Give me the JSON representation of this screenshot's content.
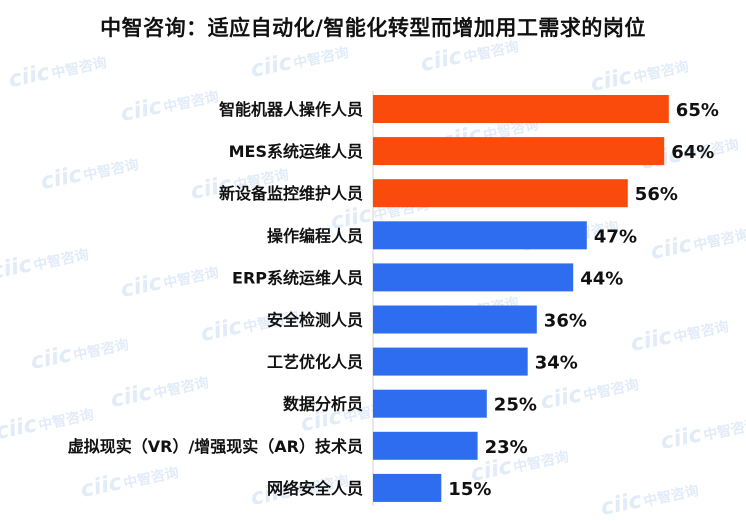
{
  "title": "中智咨询：适应自动化/智能化转型而增加用工需求的岗位",
  "watermark": {
    "logo_letters": "ciic",
    "logo_text": "中智咨询"
  },
  "colors": {
    "highlight": "#fa4a0c",
    "normal": "#2f6df0",
    "label_text": "#111111",
    "watermark": "#d7e6f6"
  },
  "chart_data": {
    "type": "bar",
    "orientation": "horizontal",
    "title": "中智咨询：适应自动化/智能化转型而增加用工需求的岗位",
    "xlabel": "",
    "ylabel": "",
    "xlim": [
      0,
      70
    ],
    "grid": false,
    "value_suffix": "%",
    "categories": [
      "智能机器人操作人员",
      "MES系统运维人员",
      "新设备监控维护人员",
      "操作编程人员",
      "ERP系统运维人员",
      "安全检测人员",
      "工艺优化人员",
      "数据分析员",
      "虚拟现实（VR）/增强现实（AR）技术员",
      "网络安全人员"
    ],
    "values": [
      65,
      64,
      56,
      47,
      44,
      36,
      34,
      25,
      23,
      15
    ],
    "data_labels": [
      "65%",
      "64%",
      "56%",
      "47%",
      "44%",
      "36%",
      "34%",
      "25%",
      "23%",
      "15%"
    ],
    "bar_colors": [
      "#fa4a0c",
      "#fa4a0c",
      "#fa4a0c",
      "#2f6df0",
      "#2f6df0",
      "#2f6df0",
      "#2f6df0",
      "#2f6df0",
      "#2f6df0",
      "#2f6df0"
    ]
  }
}
